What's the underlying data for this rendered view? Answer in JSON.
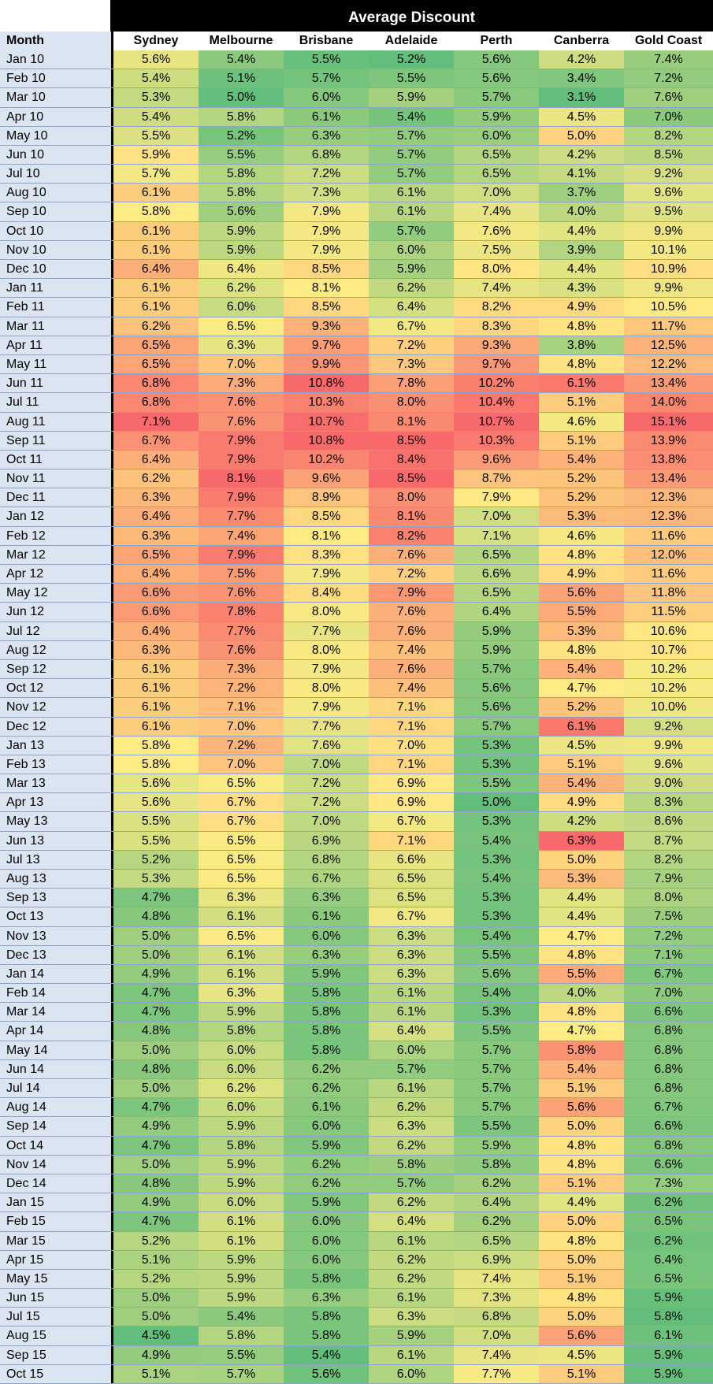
{
  "chart_data": {
    "type": "table",
    "title": "Average Discount",
    "row_header": "Month",
    "columns": [
      "Sydney",
      "Melbourne",
      "Brisbane",
      "Adelaide",
      "Perth",
      "Canberra",
      "Gold Coast"
    ],
    "rows": [
      {
        "month": "Jan 10",
        "values": [
          "5.6%",
          "5.4%",
          "5.5%",
          "5.2%",
          "5.6%",
          "4.2%",
          "7.4%"
        ]
      },
      {
        "month": "Feb 10",
        "values": [
          "5.4%",
          "5.1%",
          "5.7%",
          "5.5%",
          "5.6%",
          "3.4%",
          "7.2%"
        ]
      },
      {
        "month": "Mar 10",
        "values": [
          "5.3%",
          "5.0%",
          "6.0%",
          "5.9%",
          "5.7%",
          "3.1%",
          "7.6%"
        ]
      },
      {
        "month": "Apr 10",
        "values": [
          "5.4%",
          "5.8%",
          "6.1%",
          "5.4%",
          "5.9%",
          "4.5%",
          "7.0%"
        ]
      },
      {
        "month": "May 10",
        "values": [
          "5.5%",
          "5.2%",
          "6.3%",
          "5.7%",
          "6.0%",
          "5.0%",
          "8.2%"
        ]
      },
      {
        "month": "Jun 10",
        "values": [
          "5.9%",
          "5.5%",
          "6.8%",
          "5.7%",
          "6.5%",
          "4.2%",
          "8.5%"
        ]
      },
      {
        "month": "Jul 10",
        "values": [
          "5.7%",
          "5.8%",
          "7.2%",
          "5.7%",
          "6.5%",
          "4.1%",
          "9.2%"
        ]
      },
      {
        "month": "Aug 10",
        "values": [
          "6.1%",
          "5.8%",
          "7.3%",
          "6.1%",
          "7.0%",
          "3.7%",
          "9.6%"
        ]
      },
      {
        "month": "Sep 10",
        "values": [
          "5.8%",
          "5.6%",
          "7.9%",
          "6.1%",
          "7.4%",
          "4.0%",
          "9.5%"
        ]
      },
      {
        "month": "Oct 10",
        "values": [
          "6.1%",
          "5.9%",
          "7.9%",
          "5.7%",
          "7.6%",
          "4.4%",
          "9.9%"
        ]
      },
      {
        "month": "Nov 10",
        "values": [
          "6.1%",
          "5.9%",
          "7.9%",
          "6.0%",
          "7.5%",
          "3.9%",
          "10.1%"
        ]
      },
      {
        "month": "Dec 10",
        "values": [
          "6.4%",
          "6.4%",
          "8.5%",
          "5.9%",
          "8.0%",
          "4.4%",
          "10.9%"
        ]
      },
      {
        "month": "Jan 11",
        "values": [
          "6.1%",
          "6.2%",
          "8.1%",
          "6.2%",
          "7.4%",
          "4.3%",
          "9.9%"
        ]
      },
      {
        "month": "Feb 11",
        "values": [
          "6.1%",
          "6.0%",
          "8.5%",
          "6.4%",
          "8.2%",
          "4.9%",
          "10.5%"
        ]
      },
      {
        "month": "Mar 11",
        "values": [
          "6.2%",
          "6.5%",
          "9.3%",
          "6.7%",
          "8.3%",
          "4.8%",
          "11.7%"
        ]
      },
      {
        "month": "Apr 11",
        "values": [
          "6.5%",
          "6.3%",
          "9.7%",
          "7.2%",
          "9.3%",
          "3.8%",
          "12.5%"
        ]
      },
      {
        "month": "May 11",
        "values": [
          "6.5%",
          "7.0%",
          "9.9%",
          "7.3%",
          "9.7%",
          "4.8%",
          "12.2%"
        ]
      },
      {
        "month": "Jun 11",
        "values": [
          "6.8%",
          "7.3%",
          "10.8%",
          "7.8%",
          "10.2%",
          "6.1%",
          "13.4%"
        ]
      },
      {
        "month": "Jul 11",
        "values": [
          "6.8%",
          "7.6%",
          "10.3%",
          "8.0%",
          "10.4%",
          "5.1%",
          "14.0%"
        ]
      },
      {
        "month": "Aug 11",
        "values": [
          "7.1%",
          "7.6%",
          "10.7%",
          "8.1%",
          "10.7%",
          "4.6%",
          "15.1%"
        ]
      },
      {
        "month": "Sep 11",
        "values": [
          "6.7%",
          "7.9%",
          "10.8%",
          "8.5%",
          "10.3%",
          "5.1%",
          "13.9%"
        ]
      },
      {
        "month": "Oct 11",
        "values": [
          "6.4%",
          "7.9%",
          "10.2%",
          "8.4%",
          "9.6%",
          "5.4%",
          "13.8%"
        ]
      },
      {
        "month": "Nov 11",
        "values": [
          "6.2%",
          "8.1%",
          "9.6%",
          "8.5%",
          "8.7%",
          "5.2%",
          "13.4%"
        ]
      },
      {
        "month": "Dec 11",
        "values": [
          "6.3%",
          "7.9%",
          "8.9%",
          "8.0%",
          "7.9%",
          "5.2%",
          "12.3%"
        ]
      },
      {
        "month": "Jan 12",
        "values": [
          "6.4%",
          "7.7%",
          "8.5%",
          "8.1%",
          "7.0%",
          "5.3%",
          "12.3%"
        ]
      },
      {
        "month": "Feb 12",
        "values": [
          "6.3%",
          "7.4%",
          "8.1%",
          "8.2%",
          "7.1%",
          "4.6%",
          "11.6%"
        ]
      },
      {
        "month": "Mar 12",
        "values": [
          "6.5%",
          "7.9%",
          "8.3%",
          "7.6%",
          "6.5%",
          "4.8%",
          "12.0%"
        ]
      },
      {
        "month": "Apr 12",
        "values": [
          "6.4%",
          "7.5%",
          "7.9%",
          "7.2%",
          "6.6%",
          "4.9%",
          "11.6%"
        ]
      },
      {
        "month": "May 12",
        "values": [
          "6.6%",
          "7.6%",
          "8.4%",
          "7.9%",
          "6.5%",
          "5.6%",
          "11.8%"
        ]
      },
      {
        "month": "Jun 12",
        "values": [
          "6.6%",
          "7.8%",
          "8.0%",
          "7.6%",
          "6.4%",
          "5.5%",
          "11.5%"
        ]
      },
      {
        "month": "Jul 12",
        "values": [
          "6.4%",
          "7.7%",
          "7.7%",
          "7.6%",
          "5.9%",
          "5.3%",
          "10.6%"
        ]
      },
      {
        "month": "Aug 12",
        "values": [
          "6.3%",
          "7.6%",
          "8.0%",
          "7.4%",
          "5.9%",
          "4.8%",
          "10.7%"
        ]
      },
      {
        "month": "Sep 12",
        "values": [
          "6.1%",
          "7.3%",
          "7.9%",
          "7.6%",
          "5.7%",
          "5.4%",
          "10.2%"
        ]
      },
      {
        "month": "Oct 12",
        "values": [
          "6.1%",
          "7.2%",
          "8.0%",
          "7.4%",
          "5.6%",
          "4.7%",
          "10.2%"
        ]
      },
      {
        "month": "Nov 12",
        "values": [
          "6.1%",
          "7.1%",
          "7.9%",
          "7.1%",
          "5.6%",
          "5.2%",
          "10.0%"
        ]
      },
      {
        "month": "Dec 12",
        "values": [
          "6.1%",
          "7.0%",
          "7.7%",
          "7.1%",
          "5.7%",
          "6.1%",
          "9.2%"
        ]
      },
      {
        "month": "Jan 13",
        "values": [
          "5.8%",
          "7.2%",
          "7.6%",
          "7.0%",
          "5.3%",
          "4.5%",
          "9.9%"
        ]
      },
      {
        "month": "Feb 13",
        "values": [
          "5.8%",
          "7.0%",
          "7.0%",
          "7.1%",
          "5.3%",
          "5.1%",
          "9.6%"
        ]
      },
      {
        "month": "Mar 13",
        "values": [
          "5.6%",
          "6.5%",
          "7.2%",
          "6.9%",
          "5.5%",
          "5.4%",
          "9.0%"
        ]
      },
      {
        "month": "Apr 13",
        "values": [
          "5.6%",
          "6.7%",
          "7.2%",
          "6.9%",
          "5.0%",
          "4.9%",
          "8.3%"
        ]
      },
      {
        "month": "May 13",
        "values": [
          "5.5%",
          "6.7%",
          "7.0%",
          "6.7%",
          "5.3%",
          "4.2%",
          "8.6%"
        ]
      },
      {
        "month": "Jun 13",
        "values": [
          "5.5%",
          "6.5%",
          "6.9%",
          "7.1%",
          "5.4%",
          "6.3%",
          "8.7%"
        ]
      },
      {
        "month": "Jul 13",
        "values": [
          "5.2%",
          "6.5%",
          "6.8%",
          "6.6%",
          "5.3%",
          "5.0%",
          "8.2%"
        ]
      },
      {
        "month": "Aug 13",
        "values": [
          "5.3%",
          "6.5%",
          "6.7%",
          "6.5%",
          "5.4%",
          "5.3%",
          "7.9%"
        ]
      },
      {
        "month": "Sep 13",
        "values": [
          "4.7%",
          "6.3%",
          "6.3%",
          "6.5%",
          "5.3%",
          "4.4%",
          "8.0%"
        ]
      },
      {
        "month": "Oct 13",
        "values": [
          "4.8%",
          "6.1%",
          "6.1%",
          "6.7%",
          "5.3%",
          "4.4%",
          "7.5%"
        ]
      },
      {
        "month": "Nov 13",
        "values": [
          "5.0%",
          "6.5%",
          "6.0%",
          "6.3%",
          "5.4%",
          "4.7%",
          "7.2%"
        ]
      },
      {
        "month": "Dec 13",
        "values": [
          "5.0%",
          "6.1%",
          "6.3%",
          "6.3%",
          "5.5%",
          "4.8%",
          "7.1%"
        ]
      },
      {
        "month": "Jan 14",
        "values": [
          "4.9%",
          "6.1%",
          "5.9%",
          "6.3%",
          "5.6%",
          "5.5%",
          "6.7%"
        ]
      },
      {
        "month": "Feb 14",
        "values": [
          "4.7%",
          "6.3%",
          "5.8%",
          "6.1%",
          "5.4%",
          "4.0%",
          "7.0%"
        ]
      },
      {
        "month": "Mar 14",
        "values": [
          "4.7%",
          "5.9%",
          "5.8%",
          "6.1%",
          "5.3%",
          "4.8%",
          "6.6%"
        ]
      },
      {
        "month": "Apr 14",
        "values": [
          "4.8%",
          "5.8%",
          "5.8%",
          "6.4%",
          "5.5%",
          "4.7%",
          "6.8%"
        ]
      },
      {
        "month": "May 14",
        "values": [
          "5.0%",
          "6.0%",
          "5.8%",
          "6.0%",
          "5.7%",
          "5.8%",
          "6.8%"
        ]
      },
      {
        "month": "Jun 14",
        "values": [
          "4.8%",
          "6.0%",
          "6.2%",
          "5.7%",
          "5.7%",
          "5.4%",
          "6.8%"
        ]
      },
      {
        "month": "Jul 14",
        "values": [
          "5.0%",
          "6.2%",
          "6.2%",
          "6.1%",
          "5.7%",
          "5.1%",
          "6.8%"
        ]
      },
      {
        "month": "Aug 14",
        "values": [
          "4.7%",
          "6.0%",
          "6.1%",
          "6.2%",
          "5.7%",
          "5.6%",
          "6.7%"
        ]
      },
      {
        "month": "Sep 14",
        "values": [
          "4.9%",
          "5.9%",
          "6.0%",
          "6.3%",
          "5.5%",
          "5.0%",
          "6.6%"
        ]
      },
      {
        "month": "Oct 14",
        "values": [
          "4.7%",
          "5.8%",
          "5.9%",
          "6.2%",
          "5.9%",
          "4.8%",
          "6.8%"
        ]
      },
      {
        "month": "Nov 14",
        "values": [
          "5.0%",
          "5.9%",
          "6.2%",
          "5.8%",
          "5.8%",
          "4.8%",
          "6.6%"
        ]
      },
      {
        "month": "Dec 14",
        "values": [
          "4.8%",
          "5.9%",
          "6.2%",
          "5.7%",
          "6.2%",
          "5.1%",
          "7.3%"
        ]
      },
      {
        "month": "Jan 15",
        "values": [
          "4.9%",
          "6.0%",
          "5.9%",
          "6.2%",
          "6.4%",
          "4.4%",
          "6.2%"
        ]
      },
      {
        "month": "Feb 15",
        "values": [
          "4.7%",
          "6.1%",
          "6.0%",
          "6.4%",
          "6.2%",
          "5.0%",
          "6.5%"
        ]
      },
      {
        "month": "Mar 15",
        "values": [
          "5.2%",
          "6.1%",
          "6.0%",
          "6.1%",
          "6.5%",
          "4.8%",
          "6.2%"
        ]
      },
      {
        "month": "Apr 15",
        "values": [
          "5.1%",
          "5.9%",
          "6.0%",
          "6.2%",
          "6.9%",
          "5.0%",
          "6.4%"
        ]
      },
      {
        "month": "May 15",
        "values": [
          "5.2%",
          "5.9%",
          "5.8%",
          "6.2%",
          "7.4%",
          "5.1%",
          "6.5%"
        ]
      },
      {
        "month": "Jun 15",
        "values": [
          "5.0%",
          "5.9%",
          "6.3%",
          "6.1%",
          "7.3%",
          "4.8%",
          "5.9%"
        ]
      },
      {
        "month": "Jul 15",
        "values": [
          "5.0%",
          "5.4%",
          "5.8%",
          "6.3%",
          "6.8%",
          "5.0%",
          "5.8%"
        ]
      },
      {
        "month": "Aug 15",
        "values": [
          "4.5%",
          "5.8%",
          "5.8%",
          "5.9%",
          "7.0%",
          "5.6%",
          "6.1%"
        ]
      },
      {
        "month": "Sep 15",
        "values": [
          "4.9%",
          "5.5%",
          "5.4%",
          "6.1%",
          "7.4%",
          "4.5%",
          "5.9%"
        ]
      },
      {
        "month": "Oct 15",
        "values": [
          "5.1%",
          "5.7%",
          "5.6%",
          "6.0%",
          "7.7%",
          "5.1%",
          "5.9%"
        ]
      }
    ],
    "color_scale": {
      "low": "#63be7b",
      "mid": "#ffeb84",
      "high": "#f8696b"
    }
  }
}
